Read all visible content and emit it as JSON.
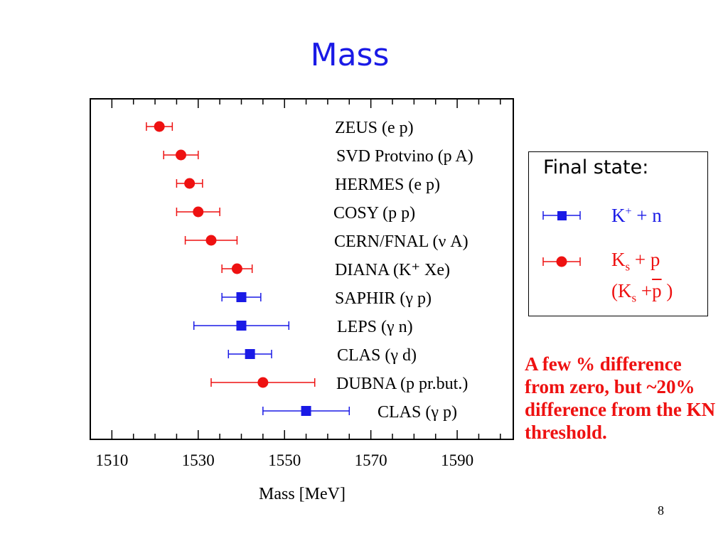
{
  "slide": {
    "title": "Mass",
    "page_number": "8",
    "note": "A few % difference from zero, but ~20% difference from the KN threshold."
  },
  "legend": {
    "title": "Final state:",
    "entries": [
      {
        "marker": "square",
        "color": "#1a1ae6",
        "main": "K",
        "sup": "+",
        "rest": " + n"
      },
      {
        "marker": "circle",
        "color": "#ee1111",
        "main": "K",
        "sub": "s",
        "rest": " + p",
        "line2_open": "(K",
        "line2_sub": "s",
        "line2_plus": " +",
        "line2_bar": "p",
        "line2_close": " )"
      }
    ]
  },
  "chart_data": {
    "type": "scatter",
    "title": "",
    "xlabel": "Mass [MeV]",
    "ylabel": "",
    "xlim": [
      1505,
      1603
    ],
    "xticks": [
      1510,
      1530,
      1550,
      1570,
      1590
    ],
    "x_minor_step": 5,
    "grid": false,
    "colors": {
      "red": "#ee1111",
      "blue": "#1a1ae6"
    },
    "points": [
      {
        "label": "ZEUS (e p)",
        "x": 1521.0,
        "xerr_low": 3.0,
        "xerr_high": 3.0,
        "marker": "circle",
        "color": "red"
      },
      {
        "label": "SVD Protvino (p A)",
        "x": 1526.0,
        "xerr_low": 4.0,
        "xerr_high": 4.0,
        "marker": "circle",
        "color": "red"
      },
      {
        "label": "HERMES (e p)",
        "x": 1528.0,
        "xerr_low": 3.0,
        "xerr_high": 3.0,
        "marker": "circle",
        "color": "red"
      },
      {
        "label": "COSY (p p)",
        "x": 1530.0,
        "xerr_low": 5.0,
        "xerr_high": 5.0,
        "marker": "circle",
        "color": "red"
      },
      {
        "label": "CERN/FNAL (ν A)",
        "x": 1533.0,
        "xerr_low": 6.0,
        "xerr_high": 6.0,
        "marker": "circle",
        "color": "red"
      },
      {
        "label": "DIANA (K⁺ Xe)",
        "x": 1539.0,
        "xerr_low": 3.5,
        "xerr_high": 3.5,
        "marker": "circle",
        "color": "red"
      },
      {
        "label": "SAPHIR (γ p)",
        "x": 1540.0,
        "xerr_low": 4.5,
        "xerr_high": 4.5,
        "marker": "square",
        "color": "blue"
      },
      {
        "label": "LEPS (γ n)",
        "x": 1540.0,
        "xerr_low": 11.0,
        "xerr_high": 11.0,
        "marker": "square",
        "color": "blue"
      },
      {
        "label": "CLAS (γ d)",
        "x": 1542.0,
        "xerr_low": 5.0,
        "xerr_high": 5.0,
        "marker": "square",
        "color": "blue"
      },
      {
        "label": "DUBNA (p pr.but.)",
        "x": 1545.0,
        "xerr_low": 12.0,
        "xerr_high": 12.0,
        "marker": "circle",
        "color": "red"
      },
      {
        "label": "CLAS (γ p)",
        "x": 1555.0,
        "xerr_low": 10.0,
        "xerr_high": 10.0,
        "marker": "square",
        "color": "blue"
      }
    ]
  }
}
